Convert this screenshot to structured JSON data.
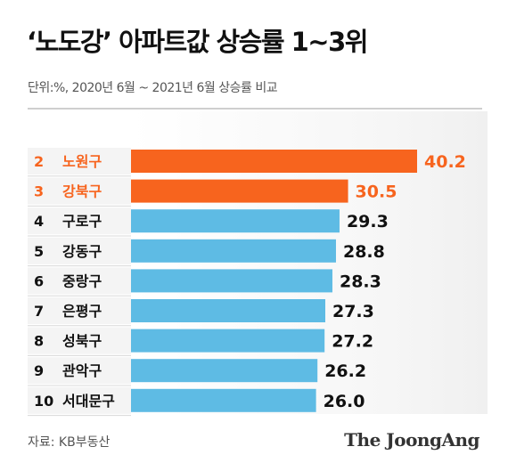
{
  "header": {
    "title": "‘노도강’ 아파트값 상승률 1~3위",
    "subtitle": "단위:%, 2020년 6월 ~ 2021년 6월 상승률 비교"
  },
  "footer": {
    "source": "자료: KB부동산",
    "logo": "The JoongAng"
  },
  "colors": {
    "highlight": "#f7641e",
    "normal": "#5ebbe4",
    "text_dark": "#111111"
  },
  "chart_data": {
    "type": "bar",
    "orientation": "horizontal",
    "title": "‘노도강’ 아파트값 상승률 1~3위",
    "subtitle": "단위:%, 2020년 6월 ~ 2021년 6월 상승률 비교",
    "unit": "%",
    "xlim": [
      0,
      40.2
    ],
    "grid": false,
    "bars": [
      {
        "rank": "2",
        "category": "노원구",
        "value": 40.2,
        "highlight": true,
        "label": "40.2"
      },
      {
        "rank": "3",
        "category": "강북구",
        "value": 30.5,
        "highlight": true,
        "label": "30.5"
      },
      {
        "rank": "4",
        "category": "구로구",
        "value": 29.3,
        "highlight": false,
        "label": "29.3"
      },
      {
        "rank": "5",
        "category": "강동구",
        "value": 28.8,
        "highlight": false,
        "label": "28.8"
      },
      {
        "rank": "6",
        "category": "중랑구",
        "value": 28.3,
        "highlight": false,
        "label": "28.3"
      },
      {
        "rank": "7",
        "category": "은평구",
        "value": 27.3,
        "highlight": false,
        "label": "27.3"
      },
      {
        "rank": "8",
        "category": "성북구",
        "value": 27.2,
        "highlight": false,
        "label": "27.2"
      },
      {
        "rank": "9",
        "category": "관악구",
        "value": 26.2,
        "highlight": false,
        "label": "26.2"
      },
      {
        "rank": "10",
        "category": "서대문구",
        "value": 26.0,
        "highlight": false,
        "label": "26.0"
      }
    ]
  }
}
